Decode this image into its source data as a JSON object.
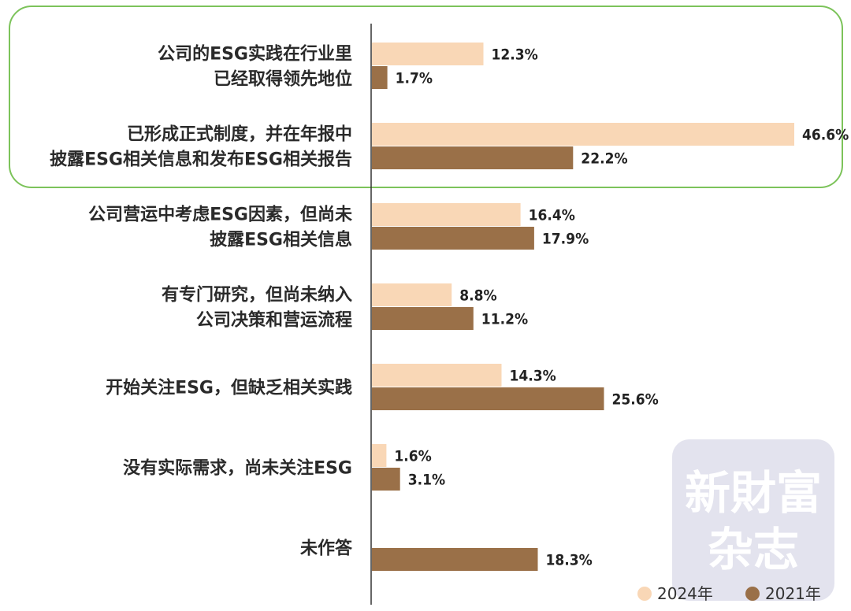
{
  "chart_data": {
    "type": "bar",
    "orientation": "horizontal",
    "categories": [
      [
        "公司的ESG实践在行业里",
        "已经取得领先地位"
      ],
      [
        "已形成正式制度，并在年报中",
        "披露ESG相关信息和发布ESG相关报告"
      ],
      [
        "公司营运中考虑ESG因素，但尚未",
        "披露ESG相关信息"
      ],
      [
        "有专门研究，但尚未纳入",
        "公司决策和营运流程"
      ],
      [
        "开始关注ESG，但缺乏相关实践"
      ],
      [
        "没有实际需求，尚未关注ESG"
      ],
      [
        "未作答"
      ]
    ],
    "series": [
      {
        "name": "2024年",
        "color": "#f9d7b6",
        "values": [
          12.3,
          46.6,
          16.4,
          8.8,
          14.3,
          1.6,
          null
        ],
        "labels": [
          "12.3%",
          "46.6%",
          "16.4%",
          "8.8%",
          "14.3%",
          "1.6%",
          ""
        ]
      },
      {
        "name": "2021年",
        "color": "#9a7048",
        "values": [
          1.7,
          22.2,
          17.9,
          11.2,
          25.6,
          3.1,
          18.3
        ],
        "labels": [
          "1.7%",
          "22.2%",
          "17.9%",
          "11.2%",
          "25.6%",
          "3.1%",
          "18.3%"
        ]
      }
    ],
    "xlim": [
      0,
      46.6
    ],
    "highlight_group_colors": {
      "border": "#7cc35a"
    },
    "legend_position": "bottom-right",
    "grid": false
  },
  "watermark": {
    "line1": "新財富",
    "line2": "杂志",
    "color": "#e3e3ee"
  }
}
